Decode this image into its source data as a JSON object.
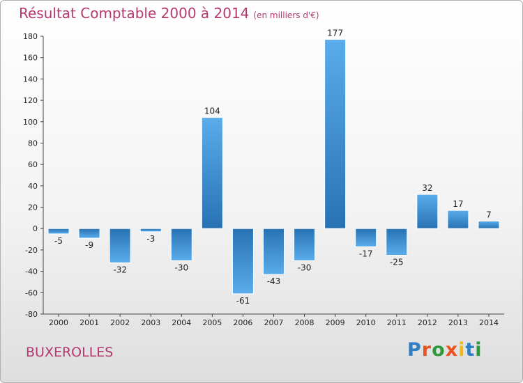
{
  "header": {
    "title": "Résultat Comptable 2000 à 2014",
    "subtitle": "(en milliers d'€)"
  },
  "footer": {
    "town": "BUXEROLLES",
    "logo": [
      "P",
      "r",
      "o",
      "x",
      "i",
      "t",
      "i"
    ],
    "logo_colors": [
      "#2f7ec4",
      "#e8531e",
      "#2d9a3c",
      "#e8531e",
      "#f2b90f",
      "#2f7ec4",
      "#2d9a3c"
    ]
  },
  "colors": {
    "title": "#b5386f",
    "bar_light": "#5aacea",
    "bar_dark": "#2872b3"
  },
  "chart_data": {
    "type": "bar",
    "title": "Résultat Comptable 2000 à 2014",
    "ylabel": "(en milliers d'€)",
    "categories": [
      "2000",
      "2001",
      "2002",
      "2003",
      "2004",
      "2005",
      "2006",
      "2007",
      "2008",
      "2009",
      "2010",
      "2011",
      "2012",
      "2013",
      "2014"
    ],
    "values": [
      -5,
      -9,
      -32,
      -3,
      -30,
      104,
      -61,
      -43,
      -30,
      177,
      -17,
      -25,
      32,
      17,
      7
    ],
    "ylim": [
      -80,
      180
    ],
    "yticks": [
      -80,
      -60,
      -40,
      -20,
      0,
      20,
      40,
      60,
      80,
      100,
      120,
      140,
      160,
      180
    ],
    "grid": false,
    "legend": "none"
  }
}
